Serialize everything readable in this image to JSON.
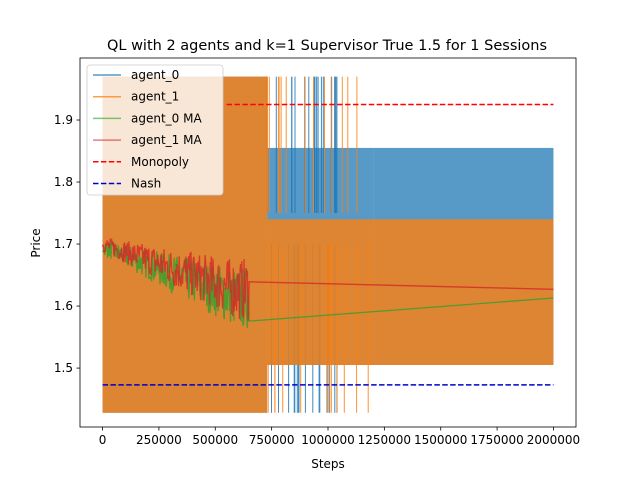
{
  "chart_data": {
    "type": "line",
    "title": "QL with 2 agents and k=1 Supervisor True 1.5  for 1 Sessions",
    "xlabel": "Steps",
    "ylabel": "Price",
    "xlim": [
      -100000,
      2100000
    ],
    "ylim": [
      1.405,
      2.0
    ],
    "xticks": [
      0,
      250000,
      500000,
      750000,
      1000000,
      1250000,
      1500000,
      1750000,
      2000000
    ],
    "yticks": [
      1.5,
      1.6,
      1.7,
      1.8,
      1.9
    ],
    "xtick_labels": [
      "0",
      "250000",
      "500000",
      "750000",
      "1000000",
      "1250000",
      "1500000",
      "1750000",
      "2000000"
    ],
    "ytick_labels": [
      "1.5",
      "1.6",
      "1.7",
      "1.8",
      "1.9"
    ],
    "legend_position": "top-left",
    "series": [
      {
        "name": "agent_0",
        "color": "#1f77b4",
        "kind": "band",
        "bands": [
          {
            "x": [
              0,
              730000
            ],
            "y": [
              1.428,
              1.97
            ]
          },
          {
            "x": [
              730000,
              1200000
            ],
            "y": [
              1.505,
              1.855
            ]
          },
          {
            "x": [
              1200000,
              2000000
            ],
            "y": [
              1.505,
              1.855
            ]
          }
        ],
        "spikes_up_to": 1.97,
        "spikes_down_to": 1.428,
        "spikes_range": [
          730000,
          1060000
        ]
      },
      {
        "name": "agent_1",
        "color": "#ff7f0e",
        "kind": "band",
        "bands": [
          {
            "x": [
              0,
              730000
            ],
            "y": [
              1.428,
              1.97
            ]
          },
          {
            "x": [
              730000,
              2000000
            ],
            "y": [
              1.505,
              1.74
            ]
          }
        ],
        "spikes_up_to": 1.97,
        "spikes_down_to": 1.428,
        "spikes_range": [
          730000,
          1180000
        ]
      },
      {
        "name": "agent_0 MA",
        "color": "#2ca02c",
        "kind": "ma",
        "start": 1.695,
        "settle": 1.613,
        "settle_x": 650000
      },
      {
        "name": "agent_1 MA",
        "color": "#d62728",
        "kind": "ma",
        "start": 1.7,
        "settle": 1.627,
        "settle_x": 650000
      },
      {
        "name": "Monopoly",
        "color": "#ff0000",
        "kind": "hline",
        "value": 1.925,
        "x": [
          550000,
          2000000
        ],
        "dashed": true
      },
      {
        "name": "Nash",
        "color": "#0000cc",
        "kind": "hline",
        "value": 1.473,
        "x": [
          0,
          2000000
        ],
        "dashed": true
      }
    ]
  }
}
